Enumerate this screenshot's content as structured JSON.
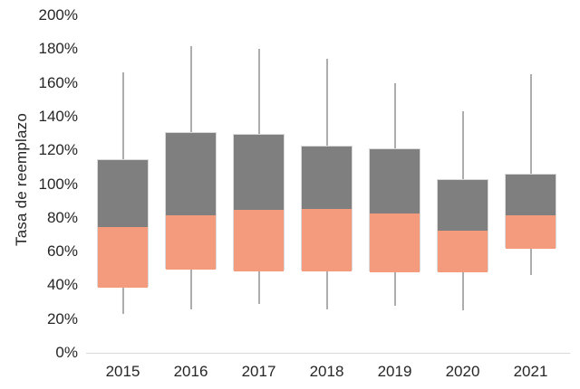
{
  "chart_data": {
    "type": "boxplot",
    "title": "",
    "xlabel": "",
    "ylabel": "Tasa de reemplazo",
    "ylim": [
      0,
      200
    ],
    "grid": false,
    "legend": "none",
    "ytick_values": [
      0,
      20,
      40,
      60,
      80,
      100,
      120,
      140,
      160,
      180,
      200
    ],
    "ytick_labels": [
      "0%",
      "20%",
      "40%",
      "60%",
      "80%",
      "100%",
      "120%",
      "140%",
      "160%",
      "180%",
      "200%"
    ],
    "categories": [
      "2015",
      "2016",
      "2017",
      "2018",
      "2019",
      "2020",
      "2021"
    ],
    "boxes": [
      {
        "category": "2015",
        "whisker_low": 23,
        "box_low": 39,
        "mid": 75,
        "box_high": 115,
        "whisker_high": 166
      },
      {
        "category": "2016",
        "whisker_low": 26,
        "box_low": 50,
        "mid": 82,
        "box_high": 131,
        "whisker_high": 182
      },
      {
        "category": "2017",
        "whisker_low": 29,
        "box_low": 49,
        "mid": 85,
        "box_high": 130,
        "whisker_high": 180
      },
      {
        "category": "2018",
        "whisker_low": 26,
        "box_low": 49,
        "mid": 86,
        "box_high": 123,
        "whisker_high": 174
      },
      {
        "category": "2019",
        "whisker_low": 28,
        "box_low": 48,
        "mid": 83,
        "box_high": 121,
        "whisker_high": 160
      },
      {
        "category": "2020",
        "whisker_low": 25,
        "box_low": 48,
        "mid": 73,
        "box_high": 103,
        "whisker_high": 143
      },
      {
        "category": "2021",
        "whisker_low": 46,
        "box_low": 62,
        "mid": 82,
        "box_high": 106,
        "whisker_high": 165
      }
    ],
    "colors": {
      "box_upper": "#7F7F7F",
      "box_lower": "#F39B7C",
      "box_border": "#D9D9D9",
      "whisker": "#ADADAD",
      "axis_line": "#D9D9D9",
      "text": "#262626",
      "background": "#FFFFFF"
    }
  }
}
